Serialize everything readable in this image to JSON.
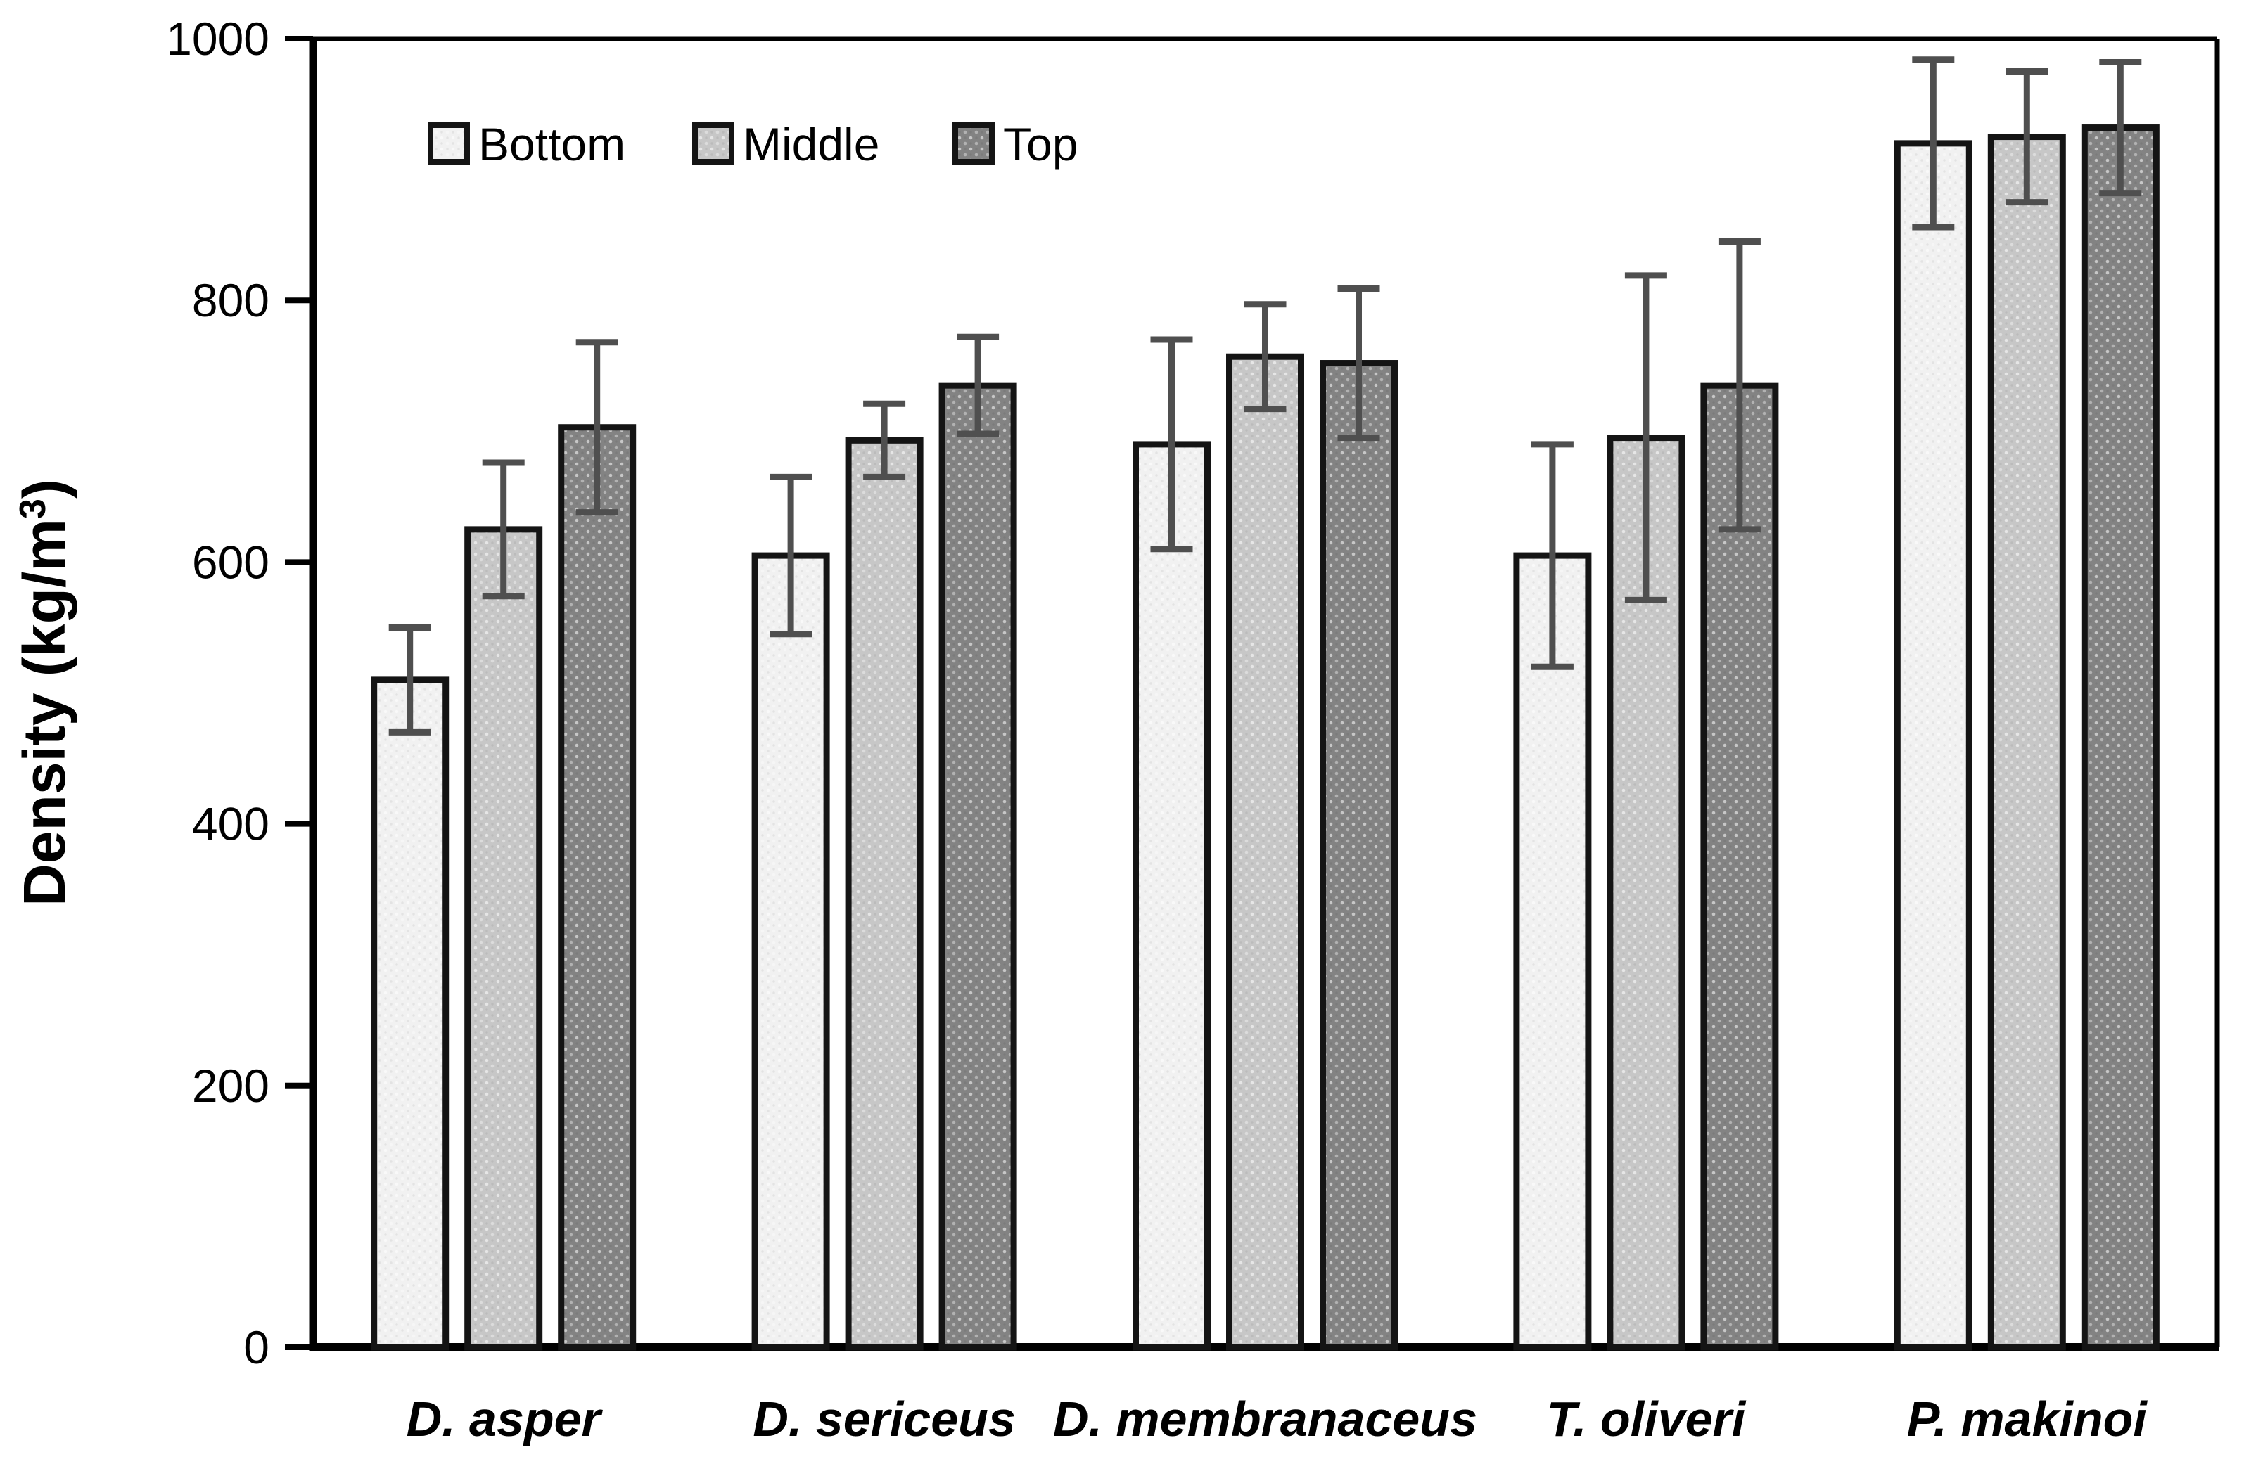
{
  "chart_data": {
    "type": "bar",
    "title": "",
    "xlabel": "",
    "ylabel": "Density (kg/m³)",
    "ylabel_sup": "3",
    "ylabel_prefix": "Density (kg/m",
    "ylabel_suffix": ")",
    "ylim": [
      0,
      1000
    ],
    "yticks": [
      "0",
      "200",
      "400",
      "600",
      "800",
      "1000"
    ],
    "ytick_values": [
      0,
      200,
      400,
      600,
      800,
      1000
    ],
    "grid": false,
    "legend_position": "top-left-inside",
    "categories": [
      "D. asper",
      "D. sericeus",
      "D. membranaceus",
      "T. oliveri",
      "P. makinoi"
    ],
    "series": [
      {
        "name": "Bottom",
        "color": "#f1f1f1",
        "values": [
          510,
          605,
          690,
          605,
          920
        ],
        "errors": [
          40,
          60,
          80,
          85,
          64
        ]
      },
      {
        "name": "Middle",
        "color": "#c7c7c7",
        "values": [
          625,
          693,
          757,
          695,
          925
        ],
        "errors": [
          51,
          28,
          40,
          124,
          50
        ]
      },
      {
        "name": "Top",
        "color": "#838383",
        "values": [
          703,
          735,
          752,
          735,
          932
        ],
        "errors": [
          65,
          37,
          57,
          110,
          50
        ]
      }
    ]
  },
  "styles": {
    "axis_color": "#000000",
    "bar_border_color": "#141414",
    "error_bar_color": "#4f4f4f",
    "background": "#ffffff"
  }
}
